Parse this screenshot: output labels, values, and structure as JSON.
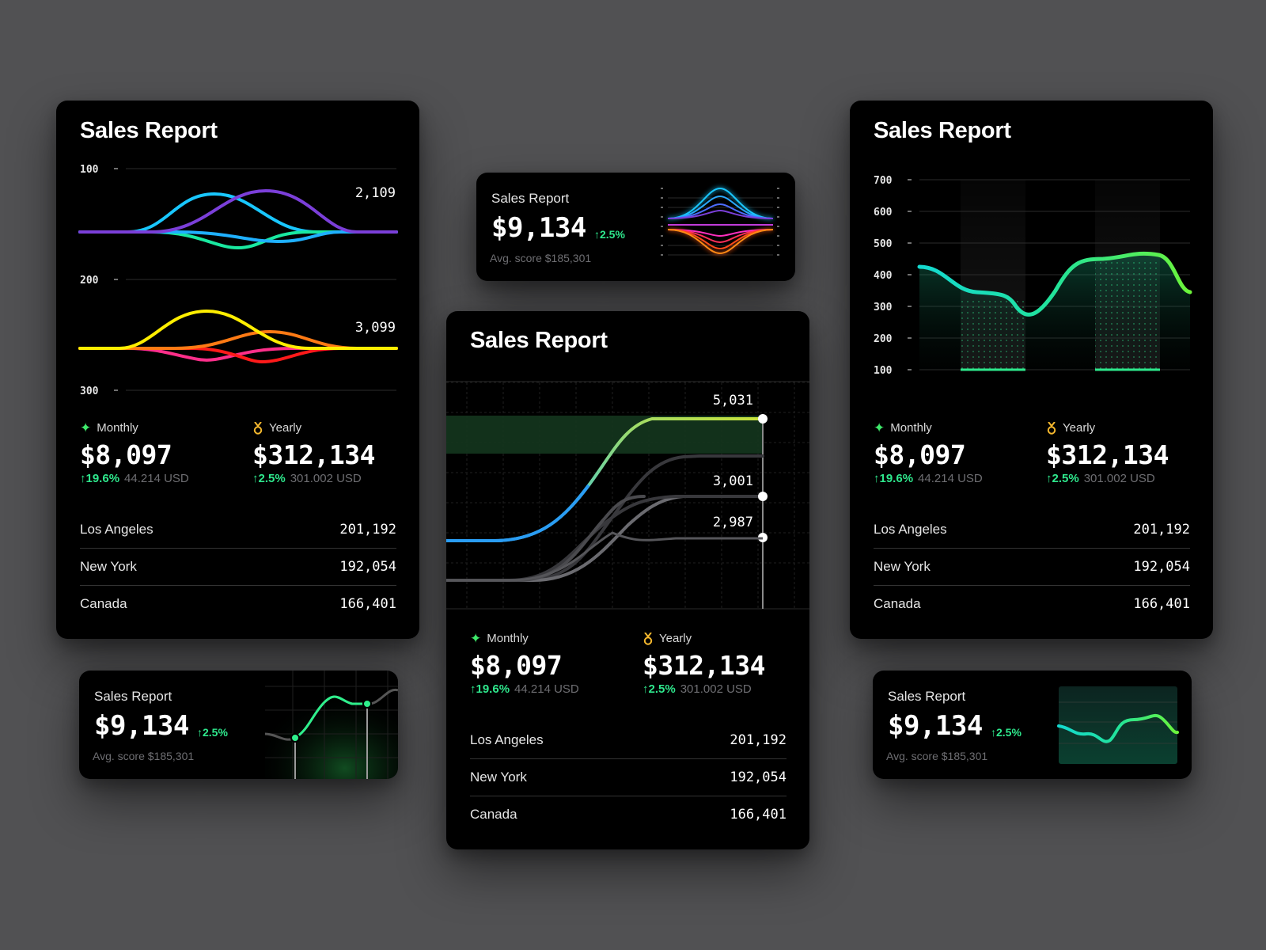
{
  "common": {
    "title": "Sales Report",
    "monthly_label": "Monthly",
    "yearly_label": "Yearly",
    "monthly_value": "$8,097",
    "monthly_change": "19.6%",
    "monthly_sub": "44.214 USD",
    "yearly_value": "$312,134",
    "yearly_change": "2.5%",
    "yearly_sub": "301.002 USD",
    "locations": [
      {
        "name": "Los Angeles",
        "value": "201,192"
      },
      {
        "name": "New York",
        "value": "192,054"
      },
      {
        "name": "Canada",
        "value": "166,401"
      }
    ]
  },
  "mini": {
    "label": "Sales Report",
    "value": "$9,134",
    "change": "2.5%",
    "sub": "Avg. score $185,301"
  },
  "icons": [
    "sparkle-icon",
    "medal-icon",
    "arrow-up-icon"
  ],
  "colors": {
    "background": "#515153",
    "card": "#000000",
    "positive": "#2ee78c",
    "sparkle": "#3ee86a",
    "medal": "#f5b82e"
  },
  "chart_data": [
    {
      "type": "line",
      "name": "left-card-wave-chart",
      "y_ticks": [
        "100",
        "200",
        "300"
      ],
      "annotations": [
        "2,109",
        "3,099"
      ],
      "series_colors": [
        "#7b3fd9",
        "#19c7ff",
        "#19e8a0",
        "#ffee00",
        "#ff7a14",
        "#ff2f8a",
        "#ff1a1a"
      ]
    },
    {
      "type": "line",
      "name": "center-card-step-chart",
      "annotations": [
        "5,031",
        "3,001",
        "2,987"
      ]
    },
    {
      "type": "area",
      "name": "right-card-area-chart",
      "y_ticks": [
        "700",
        "600",
        "500",
        "400",
        "300",
        "200",
        "100"
      ],
      "ylim": [
        100,
        700
      ],
      "grid": true
    }
  ]
}
